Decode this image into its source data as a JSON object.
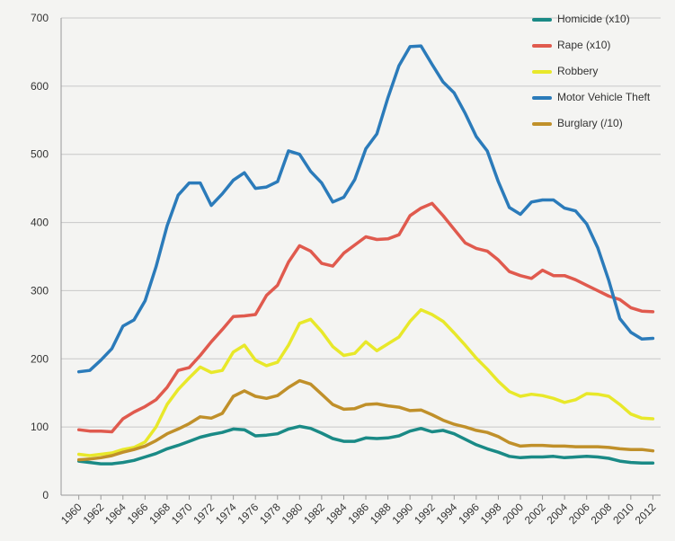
{
  "chart_data": {
    "type": "line",
    "x": [
      1960,
      1961,
      1962,
      1963,
      1964,
      1965,
      1966,
      1967,
      1968,
      1969,
      1970,
      1971,
      1972,
      1973,
      1974,
      1975,
      1976,
      1977,
      1978,
      1979,
      1980,
      1981,
      1982,
      1983,
      1984,
      1985,
      1986,
      1987,
      1988,
      1989,
      1990,
      1991,
      1992,
      1993,
      1994,
      1995,
      1996,
      1997,
      1998,
      1999,
      2000,
      2001,
      2002,
      2003,
      2004,
      2005,
      2006,
      2007,
      2008,
      2009,
      2010,
      2011,
      2012
    ],
    "xlim": [
      1958.4,
      2012.7
    ],
    "xticks": [
      1960,
      1962,
      1964,
      1966,
      1968,
      1970,
      1972,
      1974,
      1976,
      1978,
      1980,
      1982,
      1984,
      1986,
      1988,
      1990,
      1992,
      1994,
      1996,
      1998,
      2000,
      2002,
      2004,
      2006,
      2008,
      2010,
      2012
    ],
    "ylim": [
      0,
      700
    ],
    "yticks": [
      0,
      100,
      200,
      300,
      400,
      500,
      600,
      700
    ],
    "grid": true,
    "legend": "upper right",
    "series": [
      {
        "name": "Homicide (x10)",
        "color": "#1a8a86",
        "values": [
          50,
          48,
          46,
          46,
          48,
          51,
          56,
          61,
          68,
          73,
          79,
          85,
          89,
          92,
          97,
          96,
          87,
          88,
          90,
          97,
          101,
          98,
          91,
          83,
          79,
          79,
          84,
          83,
          84,
          87,
          94,
          98,
          93,
          95,
          90,
          82,
          74,
          68,
          63,
          57,
          55,
          56,
          56,
          57,
          55,
          56,
          57,
          56,
          54,
          50,
          48,
          47,
          47
        ]
      },
      {
        "name": "Rape (x10)",
        "color": "#e05a4e",
        "values": [
          96,
          94,
          94,
          93,
          112,
          122,
          130,
          140,
          158,
          183,
          187,
          205,
          225,
          243,
          262,
          263,
          265,
          293,
          308,
          342,
          366,
          358,
          340,
          336,
          355,
          367,
          379,
          375,
          376,
          382,
          410,
          421,
          428,
          410,
          390,
          370,
          362,
          358,
          345,
          328,
          322,
          318,
          330,
          322,
          322,
          316,
          308,
          300,
          292,
          287,
          275,
          270,
          269
        ]
      },
      {
        "name": "Robbery",
        "color": "#e8e82a",
        "values": [
          60,
          58,
          60,
          62,
          67,
          70,
          78,
          100,
          133,
          155,
          172,
          188,
          180,
          183,
          210,
          220,
          198,
          190,
          195,
          220,
          252,
          258,
          240,
          218,
          205,
          208,
          225,
          212,
          222,
          232,
          255,
          272,
          265,
          255,
          238,
          220,
          201,
          185,
          167,
          152,
          145,
          148,
          146,
          142,
          136,
          140,
          149,
          148,
          145,
          133,
          119,
          113,
          112
        ]
      },
      {
        "name": "Motor Vehicle Theft",
        "color": "#2b7bba",
        "values": [
          181,
          183,
          198,
          215,
          248,
          257,
          285,
          335,
          395,
          440,
          458,
          458,
          425,
          442,
          462,
          473,
          450,
          452,
          460,
          505,
          500,
          475,
          458,
          430,
          437,
          463,
          508,
          530,
          583,
          630,
          658,
          659,
          632,
          606,
          590,
          560,
          526,
          505,
          460,
          422,
          412,
          430,
          433,
          433,
          421,
          417,
          398,
          363,
          315,
          259,
          239,
          229,
          230
        ]
      },
      {
        "name": "Burglary (/10)",
        "color": "#c0902a",
        "values": [
          52,
          53,
          55,
          58,
          63,
          67,
          72,
          80,
          90,
          97,
          105,
          115,
          113,
          120,
          145,
          153,
          145,
          142,
          146,
          158,
          168,
          163,
          148,
          133,
          126,
          127,
          133,
          134,
          131,
          129,
          124,
          125,
          118,
          110,
          104,
          100,
          95,
          92,
          86,
          77,
          72,
          73,
          73,
          72,
          72,
          71,
          71,
          71,
          70,
          68,
          67,
          67,
          65
        ]
      }
    ]
  }
}
